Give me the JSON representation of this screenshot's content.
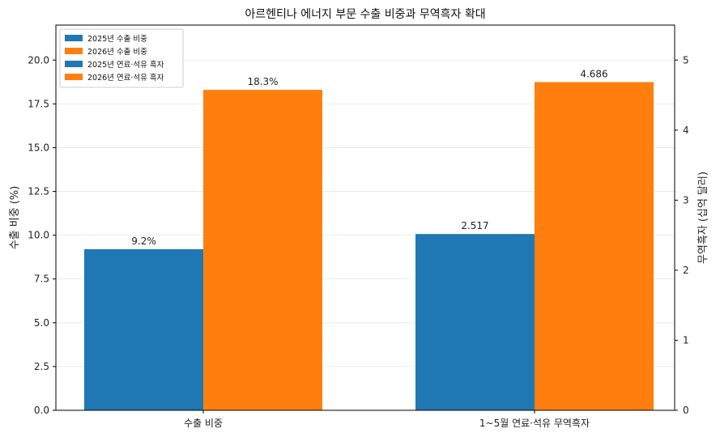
{
  "chart_data": {
    "type": "bar",
    "title": "아르헨티나 에너지 부문 수출 비중과 무역흑자 확대",
    "categories": [
      "수출 비중",
      "1~5월 연료·석유 무역흑자"
    ],
    "left_axis": {
      "label": "수출 비중 (%)",
      "ylim": [
        0,
        22
      ],
      "ticks": [
        0,
        2.5,
        5,
        7.5,
        10,
        12.5,
        15,
        17.5,
        20
      ],
      "tick_labels": [
        "0.0",
        "2.5",
        "5.0",
        "7.5",
        "10.0",
        "12.5",
        "15.0",
        "17.5",
        "20.0"
      ]
    },
    "right_axis": {
      "label": "무역흑자 (십억 달러)",
      "ylim": [
        0,
        5.5
      ],
      "ticks": [
        0,
        1,
        2,
        3,
        4,
        5
      ],
      "tick_labels": [
        "0",
        "1",
        "2",
        "3",
        "4",
        "5"
      ]
    },
    "series": [
      {
        "name": "2025년 수출 비중",
        "axis": "left",
        "category_index": 0,
        "slot": 0,
        "value": 9.2,
        "label": "9.2%",
        "color": "#1f77b4"
      },
      {
        "name": "2026년 수출 비중",
        "axis": "left",
        "category_index": 0,
        "slot": 1,
        "value": 18.3,
        "label": "18.3%",
        "color": "#ff7f0e"
      },
      {
        "name": "2025년 연료·석유 흑자",
        "axis": "right",
        "category_index": 1,
        "slot": 0,
        "value": 2.517,
        "label": "2.517",
        "color": "#1f77b4"
      },
      {
        "name": "2026년 연료·석유 흑자",
        "axis": "right",
        "category_index": 1,
        "slot": 1,
        "value": 4.686,
        "label": "4.686",
        "color": "#ff7f0e"
      }
    ],
    "grid": true,
    "legend_position": "top-left"
  }
}
